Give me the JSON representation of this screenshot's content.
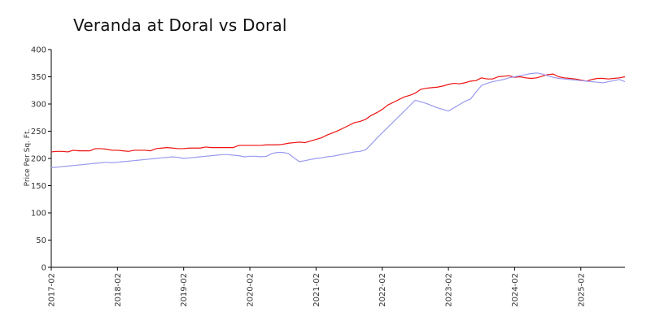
{
  "chart_data": {
    "type": "line",
    "title": "Veranda at Doral vs Doral",
    "ylabel": "Price Per Sq. Ft.",
    "xlabel": "",
    "ylim": [
      0,
      400
    ],
    "yticks": [
      0,
      50,
      100,
      150,
      200,
      250,
      300,
      350,
      400
    ],
    "xticks": [
      "2017-02",
      "2018-02",
      "2019-02",
      "2020-02",
      "2021-02",
      "2022-02",
      "2023-02",
      "2024-02",
      "2025-02"
    ],
    "x": [
      "2017-02",
      "2017-03",
      "2017-04",
      "2017-05",
      "2017-06",
      "2017-07",
      "2017-08",
      "2017-09",
      "2017-10",
      "2017-11",
      "2017-12",
      "2018-01",
      "2018-02",
      "2018-03",
      "2018-04",
      "2018-05",
      "2018-06",
      "2018-07",
      "2018-08",
      "2018-09",
      "2018-10",
      "2018-11",
      "2018-12",
      "2019-01",
      "2019-02",
      "2019-03",
      "2019-04",
      "2019-05",
      "2019-06",
      "2019-07",
      "2019-08",
      "2019-09",
      "2019-10",
      "2019-11",
      "2019-12",
      "2020-01",
      "2020-02",
      "2020-03",
      "2020-04",
      "2020-05",
      "2020-06",
      "2020-07",
      "2020-08",
      "2020-09",
      "2020-10",
      "2020-11",
      "2020-12",
      "2021-01",
      "2021-02",
      "2021-03",
      "2021-04",
      "2021-05",
      "2021-06",
      "2021-07",
      "2021-08",
      "2021-09",
      "2021-10",
      "2021-11",
      "2021-12",
      "2022-01",
      "2022-02",
      "2022-03",
      "2022-04",
      "2022-05",
      "2022-06",
      "2022-07",
      "2022-08",
      "2022-09",
      "2022-10",
      "2022-11",
      "2022-12",
      "2023-01",
      "2023-02",
      "2023-03",
      "2023-04",
      "2023-05",
      "2023-06",
      "2023-07",
      "2023-08",
      "2023-09",
      "2023-10",
      "2023-11",
      "2023-12",
      "2024-01",
      "2024-02",
      "2024-03",
      "2024-04",
      "2024-05",
      "2024-06",
      "2024-07",
      "2024-08",
      "2024-09",
      "2024-10",
      "2024-11",
      "2024-12",
      "2025-01",
      "2025-02",
      "2025-03",
      "2025-04",
      "2025-05",
      "2025-06",
      "2025-07",
      "2025-08",
      "2025-09",
      "2025-10"
    ],
    "series": [
      {
        "color": "#ee1111",
        "values": [
          212,
          213,
          213,
          212,
          215,
          214,
          214,
          214,
          218,
          218,
          217,
          215,
          215,
          214,
          213,
          215,
          215,
          215,
          214,
          218,
          219,
          220,
          219,
          218,
          218,
          219,
          219,
          219,
          221,
          220,
          220,
          220,
          220,
          220,
          224,
          224,
          224,
          224,
          224,
          225,
          225,
          225,
          226,
          228,
          229,
          230,
          229,
          232,
          235,
          238,
          243,
          247,
          251,
          256,
          261,
          266,
          268,
          272,
          279,
          284,
          290,
          298,
          303,
          308,
          313,
          316,
          320,
          327,
          329,
          330,
          331,
          333,
          336,
          338,
          337,
          339,
          342,
          343,
          348,
          346,
          346,
          350,
          351,
          352,
          349,
          350,
          348,
          347,
          348,
          351,
          354,
          355,
          350,
          348,
          347,
          346,
          344,
          342,
          345,
          347,
          347,
          346,
          347,
          348,
          350
        ]
      },
      {
        "color": "#9a9af0",
        "values": [
          183,
          184,
          185,
          186,
          187,
          188,
          189,
          190,
          191,
          192,
          193,
          192,
          193,
          194,
          195,
          196,
          197,
          198,
          199,
          200,
          201,
          202,
          203,
          202,
          200,
          201,
          202,
          203,
          204,
          205,
          206,
          207,
          207,
          206,
          205,
          203,
          204,
          204,
          203,
          204,
          209,
          211,
          211,
          209,
          201,
          194,
          196,
          198,
          200,
          201,
          203,
          204,
          206,
          208,
          210,
          212,
          213,
          216,
          226,
          237,
          247,
          257,
          267,
          277,
          287,
          297,
          307,
          304,
          301,
          297,
          293,
          290,
          287,
          293,
          299,
          305,
          309,
          322,
          334,
          338,
          341,
          343,
          345,
          348,
          350,
          352,
          354,
          356,
          357,
          355,
          352,
          349,
          347,
          346,
          345,
          344,
          343,
          342,
          341,
          340,
          339,
          341,
          343,
          345,
          341
        ]
      }
    ]
  }
}
